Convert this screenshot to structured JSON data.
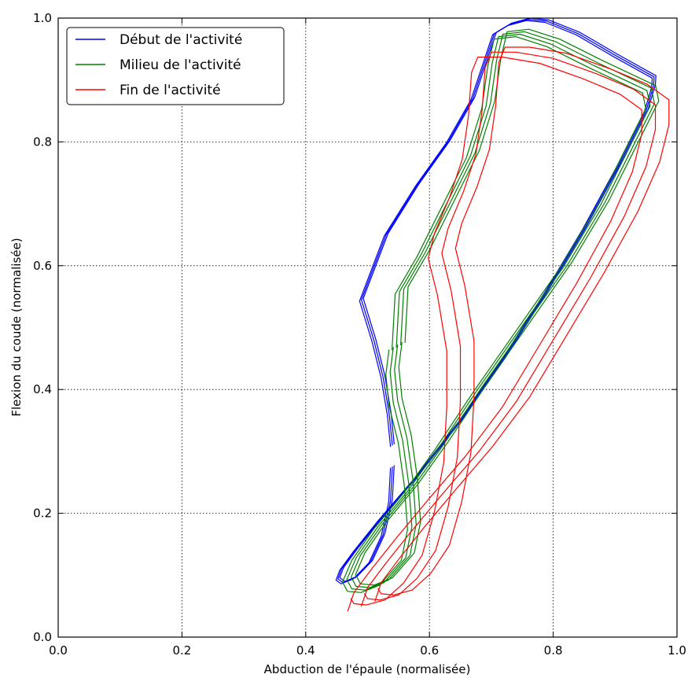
{
  "chart_data": {
    "type": "line",
    "xlabel": "Abduction de l'épaule (normalisée)",
    "ylabel": "Flexion du coude (normalisée)",
    "xlim": [
      0.0,
      1.0
    ],
    "ylim": [
      0.0,
      1.0
    ],
    "x_ticks": [
      "0.0",
      "0.2",
      "0.4",
      "0.6",
      "0.8",
      "1.0"
    ],
    "y_ticks": [
      "0.0",
      "0.2",
      "0.4",
      "0.6",
      "0.8",
      "1.0"
    ],
    "grid": true,
    "legend_position": "top-left",
    "series": [
      {
        "name": "Début de l'activité",
        "color": "#0000ff",
        "loops": 3,
        "offset": [
          0.003,
          0.002
        ],
        "points": [
          [
            0.54,
            0.275
          ],
          [
            0.537,
            0.22
          ],
          [
            0.525,
            0.165
          ],
          [
            0.505,
            0.122
          ],
          [
            0.48,
            0.096
          ],
          [
            0.46,
            0.088
          ],
          [
            0.452,
            0.094
          ],
          [
            0.458,
            0.11
          ],
          [
            0.48,
            0.14
          ],
          [
            0.52,
            0.19
          ],
          [
            0.58,
            0.26
          ],
          [
            0.65,
            0.35
          ],
          [
            0.72,
            0.45
          ],
          [
            0.79,
            0.56
          ],
          [
            0.85,
            0.66
          ],
          [
            0.91,
            0.77
          ],
          [
            0.95,
            0.85
          ],
          [
            0.962,
            0.89
          ],
          [
            0.963,
            0.905
          ],
          [
            0.9,
            0.94
          ],
          [
            0.84,
            0.975
          ],
          [
            0.79,
            0.995
          ],
          [
            0.76,
            0.998
          ],
          [
            0.73,
            0.99
          ],
          [
            0.705,
            0.975
          ],
          [
            0.69,
            0.93
          ],
          [
            0.67,
            0.87
          ],
          [
            0.63,
            0.8
          ],
          [
            0.58,
            0.73
          ],
          [
            0.53,
            0.65
          ],
          [
            0.49,
            0.545
          ],
          [
            0.51,
            0.48
          ],
          [
            0.525,
            0.42
          ],
          [
            0.535,
            0.36
          ],
          [
            0.54,
            0.31
          ]
        ]
      },
      {
        "name": "Milieu de l'activité",
        "color": "#008000",
        "loops": 4,
        "offset": [
          0.007,
          0.004
        ],
        "points": [
          [
            0.55,
            0.47
          ],
          [
            0.555,
            0.56
          ],
          [
            0.59,
            0.62
          ],
          [
            0.63,
            0.7
          ],
          [
            0.67,
            0.78
          ],
          [
            0.695,
            0.86
          ],
          [
            0.705,
            0.93
          ],
          [
            0.715,
            0.972
          ],
          [
            0.75,
            0.976
          ],
          [
            0.8,
            0.96
          ],
          [
            0.87,
            0.925
          ],
          [
            0.955,
            0.885
          ],
          [
            0.96,
            0.86
          ],
          [
            0.93,
            0.8
          ],
          [
            0.88,
            0.7
          ],
          [
            0.82,
            0.6
          ],
          [
            0.75,
            0.5
          ],
          [
            0.68,
            0.4
          ],
          [
            0.62,
            0.31
          ],
          [
            0.57,
            0.24
          ],
          [
            0.52,
            0.18
          ],
          [
            0.485,
            0.13
          ],
          [
            0.47,
            0.095
          ],
          [
            0.478,
            0.08
          ],
          [
            0.5,
            0.078
          ],
          [
            0.53,
            0.09
          ],
          [
            0.565,
            0.13
          ],
          [
            0.575,
            0.18
          ],
          [
            0.57,
            0.25
          ],
          [
            0.56,
            0.32
          ],
          [
            0.545,
            0.38
          ],
          [
            0.54,
            0.43
          ],
          [
            0.545,
            0.47
          ]
        ]
      },
      {
        "name": "Fin de l'activité",
        "color": "#ff0000",
        "loops": 3,
        "offset": [
          0.022,
          0.008
        ],
        "points": [
          [
            0.49,
            0.05
          ],
          [
            0.5,
            0.08
          ],
          [
            0.53,
            0.12
          ],
          [
            0.57,
            0.17
          ],
          [
            0.62,
            0.23
          ],
          [
            0.68,
            0.3
          ],
          [
            0.74,
            0.38
          ],
          [
            0.8,
            0.48
          ],
          [
            0.86,
            0.58
          ],
          [
            0.915,
            0.68
          ],
          [
            0.95,
            0.76
          ],
          [
            0.965,
            0.82
          ],
          [
            0.965,
            0.86
          ],
          [
            0.93,
            0.885
          ],
          [
            0.87,
            0.91
          ],
          [
            0.8,
            0.935
          ],
          [
            0.74,
            0.945
          ],
          [
            0.7,
            0.945
          ],
          [
            0.69,
            0.92
          ],
          [
            0.685,
            0.85
          ],
          [
            0.675,
            0.78
          ],
          [
            0.655,
            0.72
          ],
          [
            0.63,
            0.66
          ],
          [
            0.62,
            0.62
          ],
          [
            0.635,
            0.56
          ],
          [
            0.65,
            0.47
          ],
          [
            0.65,
            0.38
          ],
          [
            0.645,
            0.29
          ],
          [
            0.63,
            0.21
          ],
          [
            0.61,
            0.14
          ],
          [
            0.58,
            0.095
          ],
          [
            0.55,
            0.068
          ],
          [
            0.52,
            0.06
          ],
          [
            0.5,
            0.062
          ],
          [
            0.495,
            0.07
          ]
        ]
      }
    ]
  }
}
